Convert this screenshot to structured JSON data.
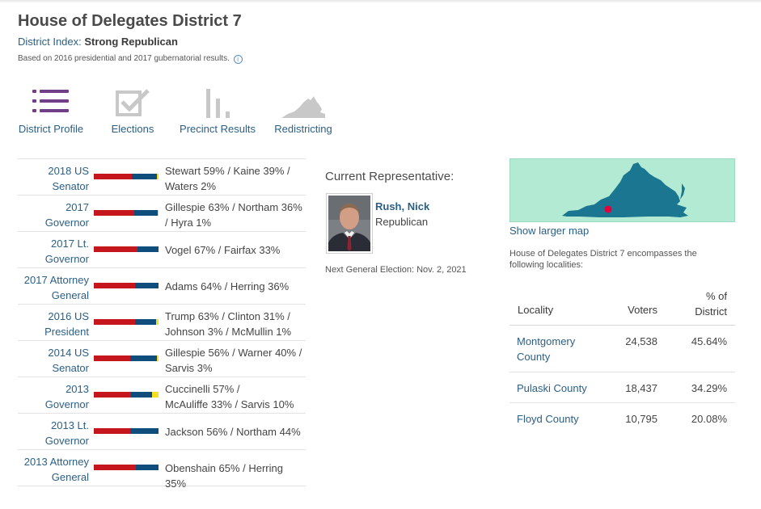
{
  "header": {
    "title": "House of Delegates District 7",
    "index_label": "District Index:",
    "index_value": "Strong Republican",
    "basis_text": "Based on 2016 presidential and 2017 gubernatorial results.",
    "info_icon": "info-icon"
  },
  "nav": {
    "items": [
      {
        "label": "District Profile",
        "icon": "list-icon"
      },
      {
        "label": "Elections",
        "icon": "ballot-checkbox-icon"
      },
      {
        "label": "Precinct Results",
        "icon": "bar-chart-icon"
      },
      {
        "label": "Redistricting",
        "icon": "virginia-map-icon"
      }
    ]
  },
  "colors": {
    "republican": "#c4161c",
    "democrat": "#0f4d7d",
    "other": "#f2e21d",
    "link": "#2b5f86",
    "nav_active": "#6f3f87",
    "nav_inactive": "#c8c8c8",
    "map_bg": "#b3ead3",
    "map_state": "#1b7791",
    "map_marker": "#e0003c"
  },
  "results": [
    {
      "race_line1": "2018 US",
      "race_line2": "Senator",
      "text_line1": "Stewart 59% / Kaine 39% /",
      "text_line2": "Waters 2%",
      "r": 59,
      "d": 39,
      "o": 2
    },
    {
      "race_line1": "2017",
      "race_line2": "Governor",
      "text_line1": "Gillespie 63% / Northam 36%",
      "text_line2": "/ Hyra 1%",
      "r": 63,
      "d": 36,
      "o": 1
    },
    {
      "race_line1": "2017 Lt.",
      "race_line2": "Governor",
      "text_line1": "Vogel 67% / Fairfax 33%",
      "text_line2": "",
      "r": 67,
      "d": 33,
      "o": 0
    },
    {
      "race_line1": "2017 Attorney",
      "race_line2": "General",
      "text_line1": "Adams 64% / Herring 36%",
      "text_line2": "",
      "r": 64,
      "d": 36,
      "o": 0
    },
    {
      "race_line1": "2016 US",
      "race_line2": "President",
      "text_line1": "Trump 63% / Clinton 31% /",
      "text_line2": "Johnson 3% / McMullin 1%",
      "r": 63,
      "d": 31,
      "o": 4
    },
    {
      "race_line1": "2014 US",
      "race_line2": "Senator",
      "text_line1": "Gillespie 56% / Warner 40% /",
      "text_line2": "Sarvis 3%",
      "r": 56,
      "d": 40,
      "o": 3
    },
    {
      "race_line1": "2013",
      "race_line2": "Governor",
      "text_line1": "Cuccinelli 57% /",
      "text_line2": "McAuliffe 33% / Sarvis 10%",
      "r": 57,
      "d": 33,
      "o": 10
    },
    {
      "race_line1": "2013 Lt.",
      "race_line2": "Governor",
      "text_line1": "Jackson 56% / Northam 44%",
      "text_line2": "",
      "r": 56,
      "d": 44,
      "o": 0
    },
    {
      "race_line1": "2013 Attorney",
      "race_line2": "General",
      "text_line1": "Obenshain 65% / Herring 35%",
      "text_line2": "",
      "r": 65,
      "d": 35,
      "o": 0
    }
  ],
  "representative": {
    "heading": "Current Representative:",
    "name": "Rush, Nick",
    "party": "Republican",
    "next_election": "Next General Election: Nov. 2, 2021",
    "photo_icon": "representative-photo"
  },
  "map": {
    "link_label": "Show larger map",
    "encompass_text": "House of Delegates District 7 encompasses the following localities:"
  },
  "localities": {
    "headers": {
      "locality": "Locality",
      "voters": "Voters",
      "pct_line1": "% of",
      "pct_line2": "District"
    },
    "rows": [
      {
        "name": "Montgomery County",
        "voters": "24,538",
        "pct": "45.64%"
      },
      {
        "name": "Pulaski County",
        "voters": "18,437",
        "pct": "34.29%"
      },
      {
        "name": "Floyd County",
        "voters": "10,795",
        "pct": "20.08%"
      }
    ]
  }
}
